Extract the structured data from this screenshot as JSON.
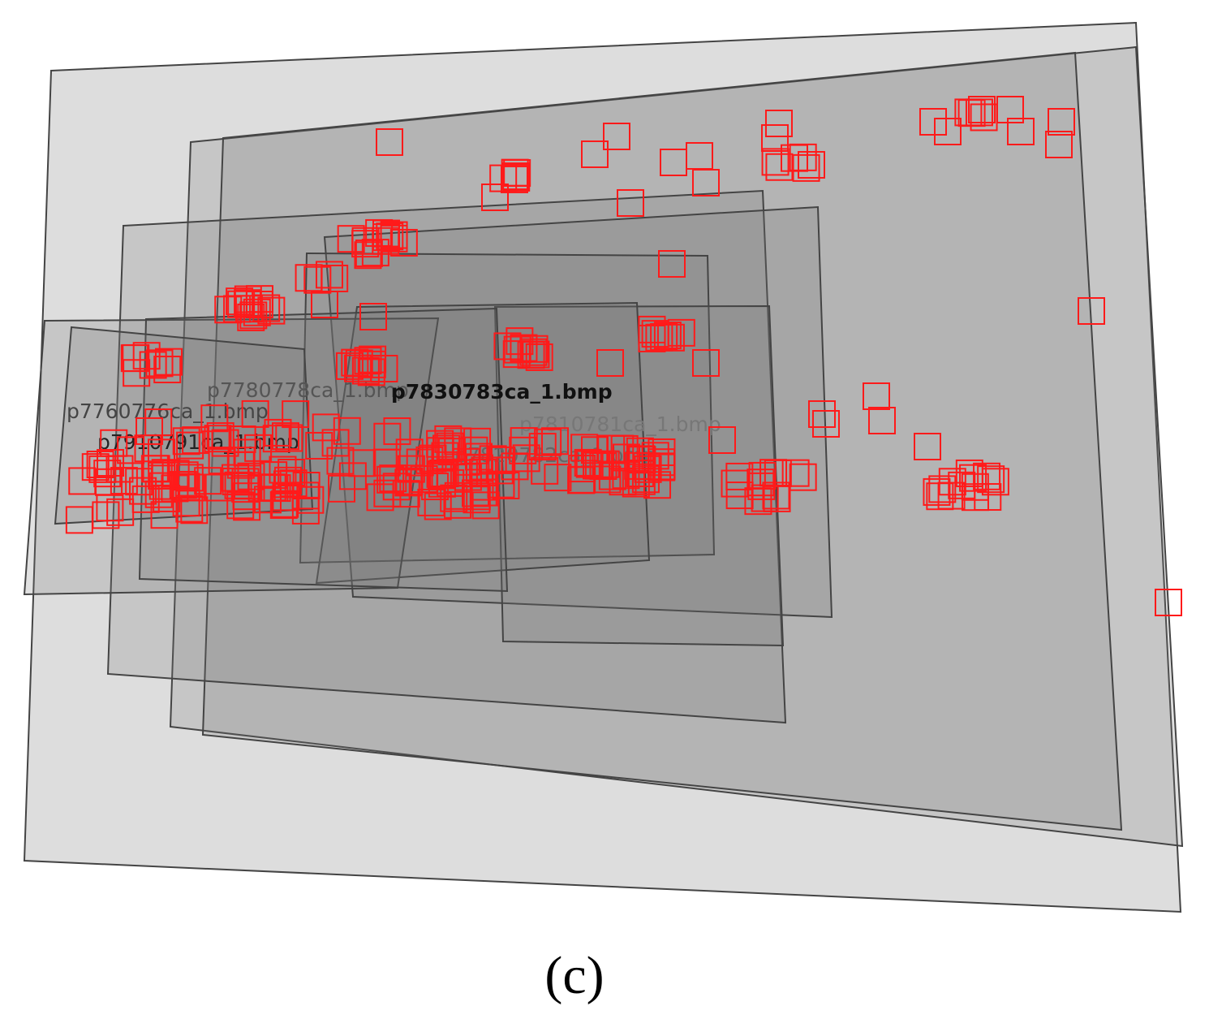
{
  "labels": [
    "p7780778ca_1.bmp",
    "p7760776ca_1.bmp",
    "p7910791ca_1.bmp",
    "p7830783ca_1.bmp",
    "p7810781ca_1.bmp",
    "p7820782ca_1.bmp"
  ],
  "caption": "(c)"
}
